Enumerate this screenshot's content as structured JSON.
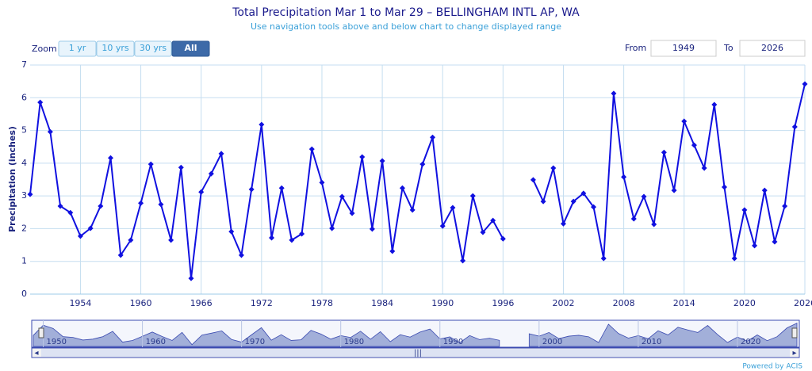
{
  "chart_data": {
    "type": "line",
    "title": "Total Precipitation Mar 1 to Mar 29 – BELLINGHAM INTL AP, WA",
    "subtitle": "Use navigation tools above and below chart to change displayed range",
    "y_label": "Precipitation (inches)",
    "x": [
      1949,
      1950,
      1951,
      1952,
      1953,
      1954,
      1955,
      1956,
      1957,
      1958,
      1959,
      1960,
      1961,
      1962,
      1963,
      1964,
      1965,
      1966,
      1967,
      1968,
      1969,
      1970,
      1971,
      1972,
      1973,
      1974,
      1975,
      1976,
      1977,
      1978,
      1979,
      1980,
      1981,
      1982,
      1983,
      1984,
      1985,
      1986,
      1987,
      1988,
      1989,
      1990,
      1991,
      1992,
      1993,
      1994,
      1995,
      1996,
      1997,
      1998,
      1999,
      2000,
      2001,
      2002,
      2003,
      2004,
      2005,
      2006,
      2007,
      2008,
      2009,
      2010,
      2011,
      2012,
      2013,
      2014,
      2015,
      2016,
      2017,
      2018,
      2019,
      2020,
      2021,
      2022,
      2023,
      2024,
      2025,
      2026
    ],
    "series": [
      {
        "color": "#1010e0",
        "values": [
          3.05,
          5.86,
          4.96,
          2.69,
          2.49,
          1.77,
          2.01,
          2.69,
          4.16,
          1.19,
          1.65,
          2.78,
          3.97,
          2.74,
          1.65,
          3.87,
          0.48,
          3.12,
          3.68,
          4.29,
          1.91,
          1.19,
          3.2,
          5.18,
          1.72,
          3.24,
          1.65,
          1.84,
          4.43,
          3.41,
          2.01,
          2.98,
          2.47,
          4.19,
          1.99,
          4.07,
          1.31,
          3.24,
          2.57,
          3.97,
          4.79,
          2.08,
          2.64,
          1.02,
          3.0,
          1.89,
          2.25,
          1.69,
          null,
          null,
          3.49,
          2.83,
          3.85,
          2.15,
          2.83,
          3.08,
          2.66,
          1.09,
          6.13,
          3.58,
          2.3,
          2.98,
          2.13,
          4.33,
          3.17,
          5.28,
          4.55,
          3.85,
          5.79,
          3.27,
          1.09,
          2.57,
          1.48,
          3.17,
          1.6,
          2.69,
          5.11,
          6.42
        ]
      }
    ],
    "xlim": [
      1949,
      2026
    ],
    "xticks": [
      1954,
      1960,
      1966,
      1972,
      1978,
      1984,
      1990,
      1996,
      2002,
      2008,
      2014,
      2020,
      2026
    ],
    "ylim": [
      0,
      7
    ],
    "yticks": [
      0,
      1,
      2,
      3,
      4,
      5,
      6,
      7
    ],
    "grid": true,
    "navigator_ticks": [
      1950,
      1960,
      1970,
      1980,
      1990,
      2000,
      2010,
      2020
    ]
  },
  "ui": {
    "zoom_label": "Zoom",
    "buttons": [
      "1 yr",
      "10 yrs",
      "30 yrs",
      "All"
    ],
    "active_button": 3,
    "from_label": "From",
    "from_value": "1949",
    "to_label": "To",
    "to_value": "2026",
    "credit": "Powered by ACIS"
  }
}
